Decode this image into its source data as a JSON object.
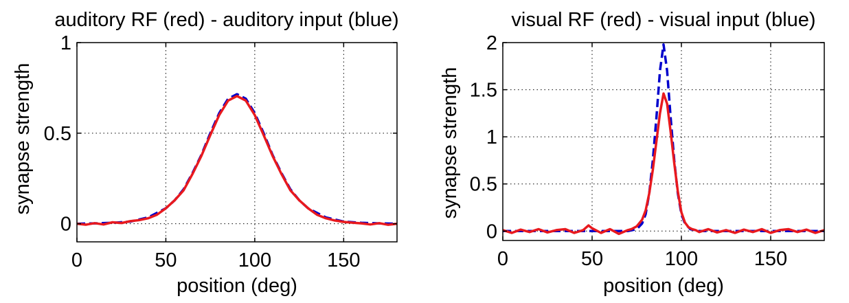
{
  "chart_data": [
    {
      "type": "line",
      "title": "auditory RF (red) - auditory input (blue)",
      "xlabel": "position (deg)",
      "ylabel": "synapse strength",
      "xlim": [
        0,
        180
      ],
      "ylim": [
        -0.1,
        1
      ],
      "xticks": [
        "0",
        "50",
        "100",
        "150"
      ],
      "yticks": [
        "0",
        "0.5",
        "1"
      ],
      "grid": true,
      "series": [
        {
          "color": "#0000cc",
          "dash": "dashed",
          "x": [
            0,
            10,
            20,
            30,
            40,
            50,
            55,
            60,
            65,
            70,
            75,
            80,
            85,
            90,
            95,
            100,
            105,
            110,
            115,
            120,
            125,
            130,
            140,
            150,
            160,
            170,
            180
          ],
          "y": [
            0,
            0.002,
            0.005,
            0.012,
            0.035,
            0.085,
            0.13,
            0.19,
            0.28,
            0.38,
            0.5,
            0.61,
            0.69,
            0.715,
            0.69,
            0.61,
            0.5,
            0.38,
            0.28,
            0.19,
            0.13,
            0.085,
            0.035,
            0.012,
            0.005,
            0.002,
            0
          ]
        },
        {
          "color": "#e8191e",
          "dash": "solid",
          "x": [
            0,
            5,
            10,
            15,
            20,
            25,
            30,
            35,
            40,
            45,
            50,
            55,
            60,
            65,
            70,
            75,
            80,
            85,
            90,
            95,
            100,
            105,
            110,
            115,
            120,
            125,
            130,
            135,
            140,
            145,
            150,
            155,
            160,
            165,
            170,
            175,
            180
          ],
          "y": [
            0,
            -0.005,
            0.003,
            -0.004,
            0.008,
            0.004,
            0.014,
            0.02,
            0.03,
            0.05,
            0.085,
            0.13,
            0.185,
            0.275,
            0.375,
            0.49,
            0.6,
            0.68,
            0.705,
            0.68,
            0.6,
            0.49,
            0.375,
            0.275,
            0.185,
            0.13,
            0.085,
            0.05,
            0.03,
            0.018,
            0.01,
            0.006,
            0.002,
            -0.004,
            0.003,
            -0.006,
            0
          ]
        }
      ]
    },
    {
      "type": "line",
      "title": "visual RF (red) - visual input (blue)",
      "xlabel": "position (deg)",
      "ylabel": "synapse strength",
      "xlim": [
        0,
        180
      ],
      "ylim": [
        -0.1,
        2
      ],
      "xticks": [
        "0",
        "50",
        "100",
        "150"
      ],
      "yticks": [
        "0",
        "0.5",
        "1",
        "1.5",
        "2"
      ],
      "grid": true,
      "series": [
        {
          "color": "#0000cc",
          "dash": "dashed",
          "x": [
            0,
            20,
            40,
            60,
            70,
            75,
            78,
            80,
            82,
            84,
            86,
            88,
            90,
            92,
            94,
            96,
            98,
            100,
            102,
            105,
            110,
            120,
            140,
            160,
            180
          ],
          "y": [
            0,
            0,
            0,
            0,
            0,
            0.02,
            0.08,
            0.18,
            0.4,
            0.75,
            1.2,
            1.7,
            1.98,
            1.7,
            1.2,
            0.75,
            0.4,
            0.18,
            0.08,
            0.02,
            0,
            0,
            0,
            0,
            0
          ]
        },
        {
          "color": "#e8191e",
          "dash": "solid",
          "x": [
            0,
            5,
            10,
            15,
            20,
            25,
            30,
            35,
            40,
            45,
            48,
            50,
            55,
            60,
            65,
            70,
            72,
            75,
            78,
            80,
            82,
            84,
            86,
            88,
            90,
            92,
            94,
            96,
            98,
            100,
            102,
            104,
            106,
            108,
            110,
            115,
            120,
            125,
            130,
            135,
            140,
            145,
            150,
            155,
            160,
            165,
            170,
            175,
            180
          ],
          "y": [
            0.01,
            -0.02,
            0.015,
            -0.01,
            0.02,
            -0.015,
            0.01,
            0.02,
            -0.02,
            0.01,
            0.06,
            0.03,
            -0.02,
            0.02,
            -0.03,
            0.01,
            0.02,
            0.05,
            0.12,
            0.22,
            0.4,
            0.65,
            0.95,
            1.25,
            1.46,
            1.35,
            1.05,
            0.72,
            0.42,
            0.2,
            0.09,
            0.04,
            0.02,
            0.01,
            -0.01,
            0.02,
            -0.015,
            0.01,
            -0.02,
            0.015,
            -0.01,
            0.02,
            -0.02,
            0.01,
            0.02,
            -0.01,
            0.015,
            -0.02,
            0.01
          ]
        }
      ]
    }
  ]
}
